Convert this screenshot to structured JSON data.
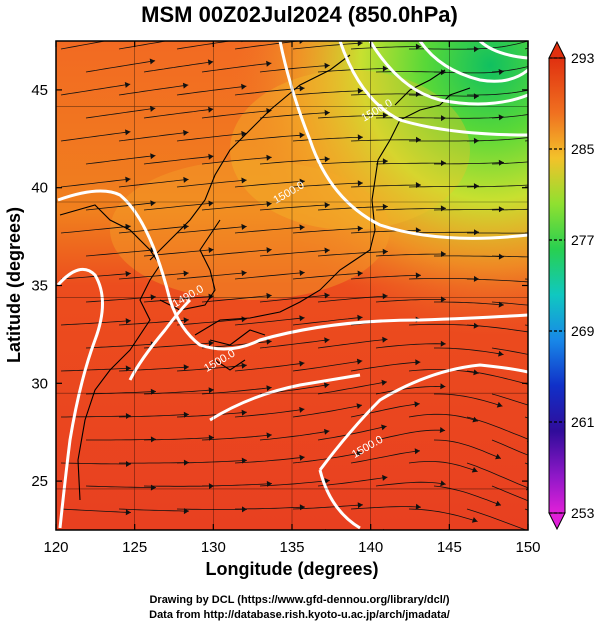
{
  "title": "MSM 00Z02Jul2024 (850.0hPa)",
  "map": {
    "projection": "lon-lat",
    "lon_range": [
      120,
      150
    ],
    "lat_range": [
      22.5,
      47.5
    ],
    "xlabel": "Longitude (degrees)",
    "ylabel": "Latitude  (degrees)",
    "x_ticks": [
      "120",
      "125",
      "130",
      "135",
      "140",
      "145",
      "150"
    ],
    "y_ticks": [
      "25",
      "30",
      "35",
      "40",
      "45"
    ],
    "field": "temperature (shaded) with streamlines and white height contours",
    "contour_labels": [
      {
        "text": "1500.0",
        "lon": 140.5,
        "lat": 43.8
      },
      {
        "text": "1500.0",
        "lon": 134.9,
        "lat": 39.6
      },
      {
        "text": "1490.0",
        "lon": 128.5,
        "lat": 34.3
      },
      {
        "text": "1500.0",
        "lon": 130.5,
        "lat": 31.0
      },
      {
        "text": "1500.0",
        "lon": 139.9,
        "lat": 26.6
      }
    ]
  },
  "colorbar": {
    "min": 253,
    "max": 293,
    "labels": [
      "293",
      "285",
      "277",
      "269",
      "261",
      "253"
    ],
    "colors": [
      "#e83818",
      "#f07a20",
      "#f2c22a",
      "#8ee030",
      "#20d060",
      "#10c8c0",
      "#1090e8",
      "#1030c8",
      "#3010a0",
      "#8018c0",
      "#e020d8"
    ]
  },
  "credits": {
    "line1": "Drawing by DCL (https://www.gfd-dennou.org/library/dcl/)",
    "line2": "Data from http://database.rish.kyoto-u.ac.jp/arch/jmadata/"
  }
}
